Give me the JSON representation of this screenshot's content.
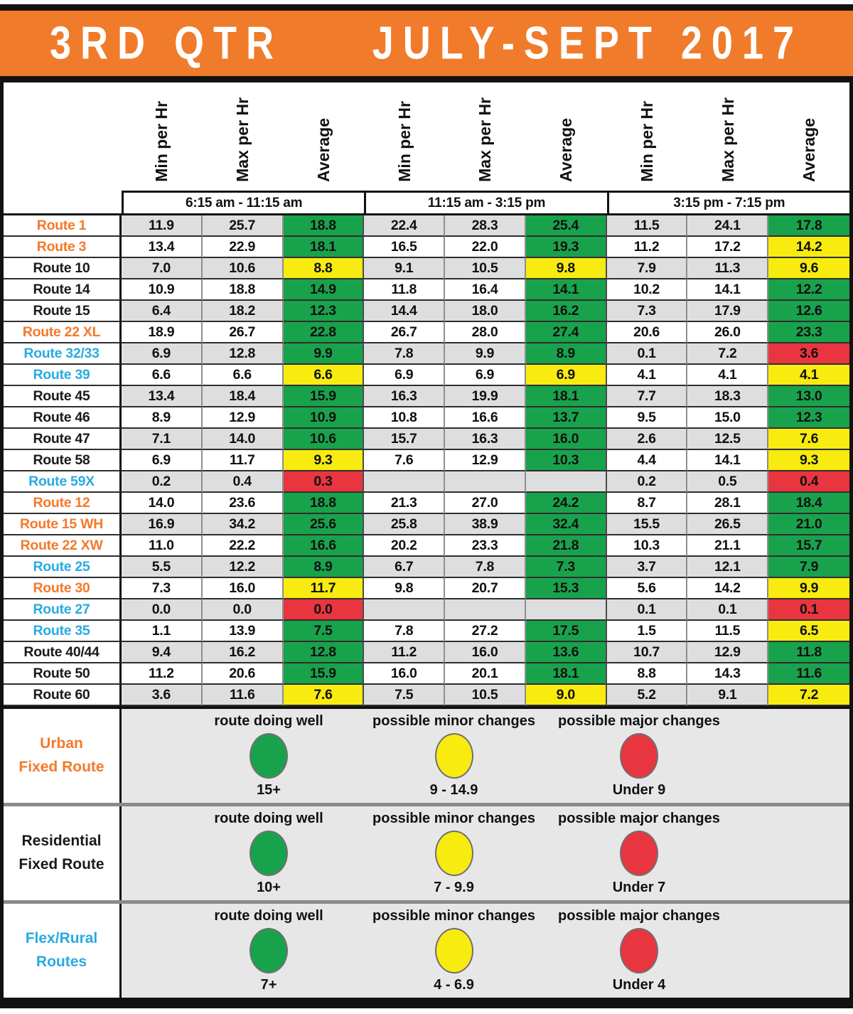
{
  "title": {
    "quarter": "3RD QTR",
    "period": "JULY-SEPT 2017"
  },
  "colors": {
    "header_orange": "#F07B2B",
    "route_orange": "#F4792B",
    "route_cyan": "#29ABE2",
    "route_black": "#1A1A1A",
    "green": "#19A24C",
    "yellow": "#F7EB10",
    "red": "#E93540",
    "stripe_gray": "#DEDEDE",
    "legend_gray": "#E7E7E7"
  },
  "chart_data": {
    "type": "table",
    "title": "3RD QTR JULY-SEPT 2017",
    "metric_headers": [
      "Min per Hr",
      "Max per Hr",
      "Average"
    ],
    "time_blocks": [
      "6:15 am - 11:15 am",
      "11:15 am - 3:15 pm",
      "3:15 pm - 7:15 pm"
    ],
    "rows": [
      {
        "name": "Route 1",
        "type": "urban",
        "values": [
          "11.9",
          "25.7",
          "18.8",
          "22.4",
          "28.3",
          "25.4",
          "11.5",
          "24.1",
          "17.8"
        ],
        "avg_status": [
          "green",
          "green",
          "green"
        ]
      },
      {
        "name": "Route 3",
        "type": "urban",
        "values": [
          "13.4",
          "22.9",
          "18.1",
          "16.5",
          "22.0",
          "19.3",
          "11.2",
          "17.2",
          "14.2"
        ],
        "avg_status": [
          "green",
          "green",
          "yellow"
        ]
      },
      {
        "name": "Route 10",
        "type": "residential",
        "values": [
          "7.0",
          "10.6",
          "8.8",
          "9.1",
          "10.5",
          "9.8",
          "7.9",
          "11.3",
          "9.6"
        ],
        "avg_status": [
          "yellow",
          "yellow",
          "yellow"
        ]
      },
      {
        "name": "Route 14",
        "type": "residential",
        "values": [
          "10.9",
          "18.8",
          "14.9",
          "11.8",
          "16.4",
          "14.1",
          "10.2",
          "14.1",
          "12.2"
        ],
        "avg_status": [
          "green",
          "green",
          "green"
        ]
      },
      {
        "name": "Route 15",
        "type": "residential",
        "values": [
          "6.4",
          "18.2",
          "12.3",
          "14.4",
          "18.0",
          "16.2",
          "7.3",
          "17.9",
          "12.6"
        ],
        "avg_status": [
          "green",
          "green",
          "green"
        ]
      },
      {
        "name": "Route 22 XL",
        "type": "urban",
        "values": [
          "18.9",
          "26.7",
          "22.8",
          "26.7",
          "28.0",
          "27.4",
          "20.6",
          "26.0",
          "23.3"
        ],
        "avg_status": [
          "green",
          "green",
          "green"
        ]
      },
      {
        "name": "Route 32/33",
        "type": "flex",
        "values": [
          "6.9",
          "12.8",
          "9.9",
          "7.8",
          "9.9",
          "8.9",
          "0.1",
          "7.2",
          "3.6"
        ],
        "avg_status": [
          "green",
          "green",
          "red"
        ]
      },
      {
        "name": "Route 39",
        "type": "flex",
        "values": [
          "6.6",
          "6.6",
          "6.6",
          "6.9",
          "6.9",
          "6.9",
          "4.1",
          "4.1",
          "4.1"
        ],
        "avg_status": [
          "yellow",
          "yellow",
          "yellow"
        ]
      },
      {
        "name": "Route 45",
        "type": "residential",
        "values": [
          "13.4",
          "18.4",
          "15.9",
          "16.3",
          "19.9",
          "18.1",
          "7.7",
          "18.3",
          "13.0"
        ],
        "avg_status": [
          "green",
          "green",
          "green"
        ]
      },
      {
        "name": "Route 46",
        "type": "residential",
        "values": [
          "8.9",
          "12.9",
          "10.9",
          "10.8",
          "16.6",
          "13.7",
          "9.5",
          "15.0",
          "12.3"
        ],
        "avg_status": [
          "green",
          "green",
          "green"
        ]
      },
      {
        "name": "Route 47",
        "type": "residential",
        "values": [
          "7.1",
          "14.0",
          "10.6",
          "15.7",
          "16.3",
          "16.0",
          "2.6",
          "12.5",
          "7.6"
        ],
        "avg_status": [
          "green",
          "green",
          "yellow"
        ]
      },
      {
        "name": "Route 58",
        "type": "residential",
        "values": [
          "6.9",
          "11.7",
          "9.3",
          "7.6",
          "12.9",
          "10.3",
          "4.4",
          "14.1",
          "9.3"
        ],
        "avg_status": [
          "yellow",
          "green",
          "yellow"
        ]
      },
      {
        "name": "Route 59X",
        "type": "flex",
        "values": [
          "0.2",
          "0.4",
          "0.3",
          "",
          "",
          "",
          "0.2",
          "0.5",
          "0.4"
        ],
        "avg_status": [
          "red",
          "none",
          "red"
        ]
      },
      {
        "name": "Route 12",
        "type": "urban",
        "values": [
          "14.0",
          "23.6",
          "18.8",
          "21.3",
          "27.0",
          "24.2",
          "8.7",
          "28.1",
          "18.4"
        ],
        "avg_status": [
          "green",
          "green",
          "green"
        ]
      },
      {
        "name": "Route 15 WH",
        "type": "urban",
        "values": [
          "16.9",
          "34.2",
          "25.6",
          "25.8",
          "38.9",
          "32.4",
          "15.5",
          "26.5",
          "21.0"
        ],
        "avg_status": [
          "green",
          "green",
          "green"
        ]
      },
      {
        "name": "Route 22 XW",
        "type": "urban",
        "values": [
          "11.0",
          "22.2",
          "16.6",
          "20.2",
          "23.3",
          "21.8",
          "10.3",
          "21.1",
          "15.7"
        ],
        "avg_status": [
          "green",
          "green",
          "green"
        ]
      },
      {
        "name": "Route 25",
        "type": "flex",
        "values": [
          "5.5",
          "12.2",
          "8.9",
          "6.7",
          "7.8",
          "7.3",
          "3.7",
          "12.1",
          "7.9"
        ],
        "avg_status": [
          "green",
          "green",
          "green"
        ]
      },
      {
        "name": "Route 30",
        "type": "urban",
        "values": [
          "7.3",
          "16.0",
          "11.7",
          "9.8",
          "20.7",
          "15.3",
          "5.6",
          "14.2",
          "9.9"
        ],
        "avg_status": [
          "yellow",
          "green",
          "yellow"
        ]
      },
      {
        "name": "Route 27",
        "type": "flex",
        "values": [
          "0.0",
          "0.0",
          "0.0",
          "",
          "",
          "",
          "0.1",
          "0.1",
          "0.1"
        ],
        "avg_status": [
          "red",
          "none",
          "red"
        ]
      },
      {
        "name": "Route 35",
        "type": "flex",
        "values": [
          "1.1",
          "13.9",
          "7.5",
          "7.8",
          "27.2",
          "17.5",
          "1.5",
          "11.5",
          "6.5"
        ],
        "avg_status": [
          "green",
          "green",
          "yellow"
        ]
      },
      {
        "name": "Route 40/44",
        "type": "residential",
        "values": [
          "9.4",
          "16.2",
          "12.8",
          "11.2",
          "16.0",
          "13.6",
          "10.7",
          "12.9",
          "11.8"
        ],
        "avg_status": [
          "green",
          "green",
          "green"
        ]
      },
      {
        "name": "Route 50",
        "type": "residential",
        "values": [
          "11.2",
          "20.6",
          "15.9",
          "16.0",
          "20.1",
          "18.1",
          "8.8",
          "14.3",
          "11.6"
        ],
        "avg_status": [
          "green",
          "green",
          "green"
        ]
      },
      {
        "name": "Route 60",
        "type": "residential",
        "values": [
          "3.6",
          "11.6",
          "7.6",
          "7.5",
          "10.5",
          "9.0",
          "5.2",
          "9.1",
          "7.2"
        ],
        "avg_status": [
          "yellow",
          "yellow",
          "yellow"
        ]
      }
    ]
  },
  "legend": {
    "headings": [
      "route doing well",
      "possible minor changes",
      "possible major changes"
    ],
    "rows": [
      {
        "label_lines": [
          "Urban",
          "Fixed Route"
        ],
        "type": "urban",
        "thresholds": [
          "15+",
          "9 - 14.9",
          "Under 9"
        ]
      },
      {
        "label_lines": [
          "Residential",
          "Fixed Route"
        ],
        "type": "residential",
        "thresholds": [
          "10+",
          "7 - 9.9",
          "Under 7"
        ]
      },
      {
        "label_lines": [
          "Flex/Rural",
          "Routes"
        ],
        "type": "flex",
        "thresholds": [
          "7+",
          "4 - 6.9",
          "Under 4"
        ]
      }
    ]
  }
}
